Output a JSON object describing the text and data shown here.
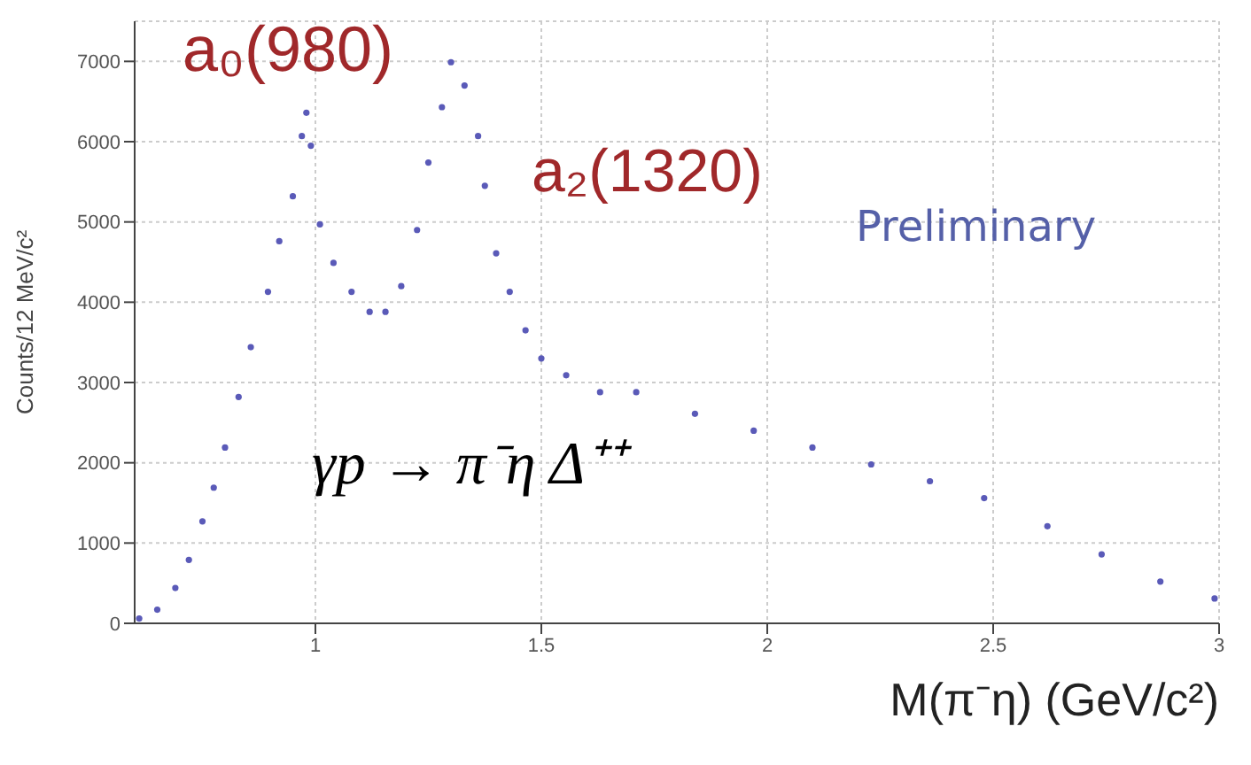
{
  "chart_data": {
    "type": "scatter",
    "xlabel": "M(π⁻η) (GeV/c²)",
    "ylabel": "Counts/12 MeV/c²",
    "annotations": [
      "a₀(980)",
      "a₂(1320)",
      "Preliminary",
      "γp → π⁻η Δ⁺⁺"
    ],
    "x": [
      0.61,
      0.65,
      0.69,
      0.72,
      0.75,
      0.775,
      0.8,
      0.83,
      0.857,
      0.895,
      0.92,
      0.95,
      0.97,
      0.98,
      0.99,
      1.01,
      1.04,
      1.08,
      1.12,
      1.155,
      1.19,
      1.225,
      1.25,
      1.28,
      1.3,
      1.33,
      1.36,
      1.375,
      1.4,
      1.43,
      1.465,
      1.5,
      1.555,
      1.63,
      1.71,
      1.84,
      1.97,
      2.1,
      2.23,
      2.36,
      2.48,
      2.62,
      2.74,
      2.87,
      2.99
    ],
    "series": [
      {
        "color": "#5a5ab8",
        "values": [
          60,
          170,
          440,
          790,
          1270,
          1690,
          2190,
          2820,
          3440,
          4130,
          4760,
          5320,
          6070,
          6360,
          5950,
          4970,
          4490,
          4130,
          3880,
          3880,
          4200,
          4900,
          5740,
          6430,
          6990,
          6700,
          6070,
          5450,
          4610,
          4130,
          3650,
          3300,
          3090,
          2880,
          2880,
          2610,
          2400,
          2190,
          1980,
          1770,
          1560,
          1210,
          860,
          520,
          310
        ]
      }
    ],
    "xlim": [
      0.6,
      3
    ],
    "xticks": [
      1,
      1.5,
      2,
      2.5,
      3
    ],
    "ylim": [
      0,
      7500
    ],
    "yticks": [
      0,
      1000,
      2000,
      3000,
      4000,
      5000,
      6000,
      7000
    ],
    "grid": true,
    "marker": "circle"
  }
}
